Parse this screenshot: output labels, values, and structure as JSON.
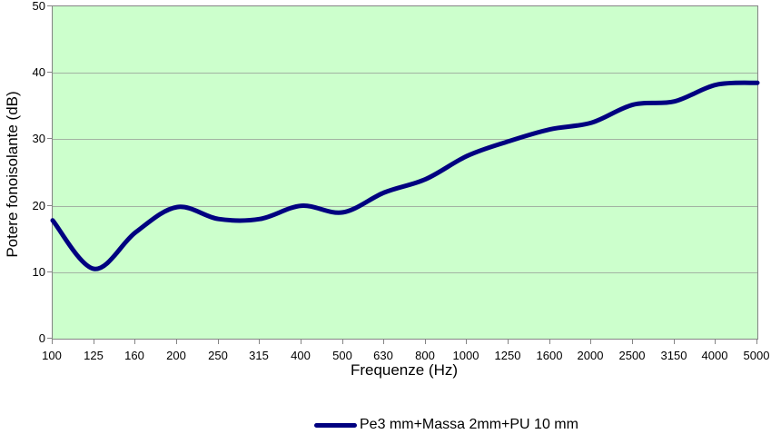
{
  "chart_data": {
    "type": "line",
    "smooth": true,
    "title": "",
    "xlabel": "Frequenze (Hz)",
    "ylabel": "Potere fonoisolante (dB)",
    "categories": [
      "100",
      "125",
      "160",
      "200",
      "250",
      "315",
      "400",
      "500",
      "630",
      "800",
      "1000",
      "1250",
      "1600",
      "2000",
      "2500",
      "3150",
      "4000",
      "5000"
    ],
    "series": [
      {
        "name": "Pe3 mm+Massa 2mm+PU 10 mm",
        "values": [
          17.8,
          10.5,
          16,
          19.8,
          18,
          18,
          20,
          19,
          22,
          24,
          27.5,
          29.7,
          31.5,
          32.5,
          35.2,
          35.7,
          38.2,
          38.5
        ],
        "color": "#000080"
      }
    ],
    "ylim": [
      0,
      50
    ],
    "y_ticks": [
      0,
      10,
      20,
      30,
      40,
      50
    ],
    "grid": true,
    "legend_position": "bottom",
    "plot_bg": "#ccffcc",
    "gridline_color": "#a3b3a3",
    "axis_color": "#848484"
  }
}
